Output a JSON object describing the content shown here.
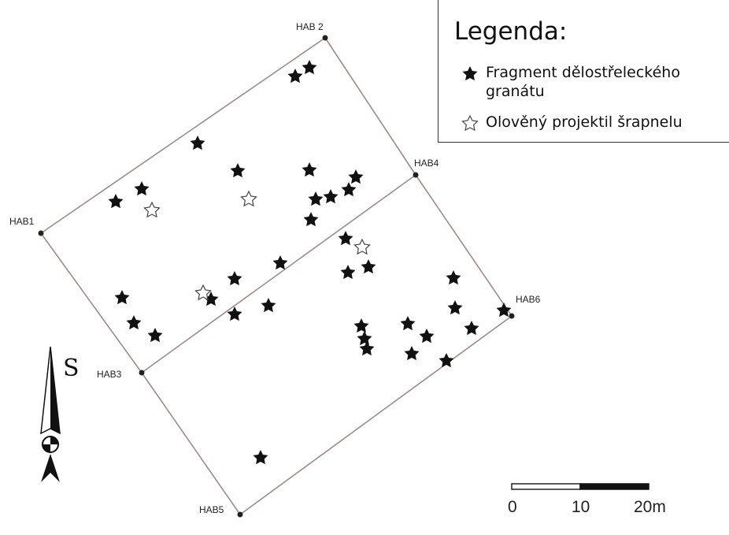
{
  "points": [
    {
      "id": "hab1",
      "label": "HAB1"
    },
    {
      "id": "hab2",
      "label": "HAB 2"
    },
    {
      "id": "hab3",
      "label": "HAB3"
    },
    {
      "id": "hab4",
      "label": "HAB4"
    },
    {
      "id": "hab5",
      "label": "HAB5"
    },
    {
      "id": "hab6",
      "label": "HAB6"
    }
  ],
  "legend": {
    "title": "Legenda:",
    "items": [
      {
        "label": "Fragment dělostřeleckého granátu",
        "symbol": "filled-star-icon",
        "color": "#111111"
      },
      {
        "label": "Olověný projektil šrapnelu",
        "symbol": "outline-star-icon",
        "color": "#444444"
      }
    ]
  },
  "scale": {
    "ticks": [
      "0",
      "10",
      "20m"
    ]
  },
  "north_arrow": {
    "letter": "S"
  },
  "colors": {
    "boundary": "#a08a8a",
    "marker": "#111111"
  }
}
